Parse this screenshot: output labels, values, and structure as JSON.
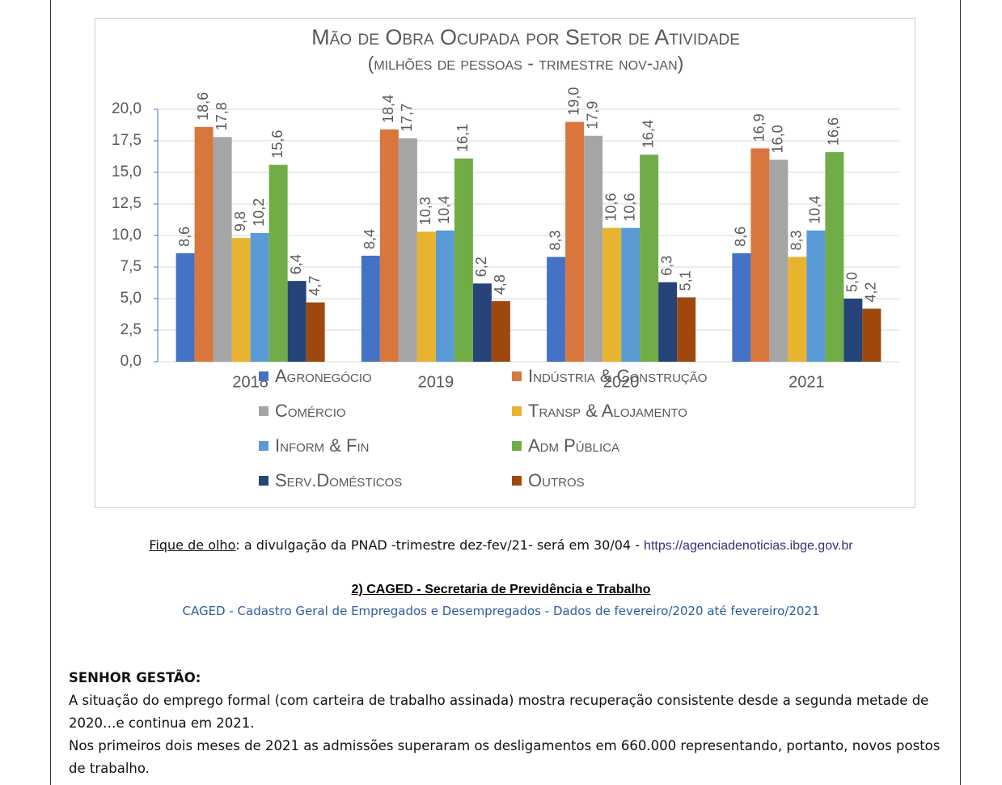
{
  "chart_data": {
    "type": "bar",
    "title": "Mão de Obra Ocupada por Setor de Atividade",
    "subtitle": "(milhões de pessoas - trimestre nov-jan)",
    "categories": [
      "2018",
      "2019",
      "2020",
      "2021"
    ],
    "series": [
      {
        "name": "Agronegócio",
        "color": "#4472c4",
        "values": [
          8.6,
          8.4,
          8.3,
          8.6
        ],
        "value_labels": [
          "8,6",
          "8,4",
          "8,3",
          "8,6"
        ]
      },
      {
        "name": "Indústria & Construção",
        "color": "#d9763d",
        "values": [
          18.6,
          18.4,
          19.0,
          16.9
        ],
        "value_labels": [
          "18,6",
          "18,4",
          "19,0",
          "16,9"
        ]
      },
      {
        "name": "Comércio",
        "color": "#a5a5a5",
        "values": [
          17.8,
          17.7,
          17.9,
          16.0
        ],
        "value_labels": [
          "17,8",
          "17,7",
          "17,9",
          "16,0"
        ]
      },
      {
        "name": "Transp & Alojamento",
        "color": "#e8b32e",
        "values": [
          9.8,
          10.3,
          10.6,
          8.3
        ],
        "value_labels": [
          "9,8",
          "10,3",
          "10,6",
          "8,3"
        ]
      },
      {
        "name": "Inform & Fin",
        "color": "#5b9bd5",
        "values": [
          10.2,
          10.4,
          10.6,
          10.4
        ],
        "value_labels": [
          "10,2",
          "10,4",
          "10,6",
          "10,4"
        ]
      },
      {
        "name": "Adm Pública",
        "color": "#70ad47",
        "values": [
          15.6,
          16.1,
          16.4,
          16.6
        ],
        "value_labels": [
          "15,6",
          "16,1",
          "16,4",
          "16,6"
        ]
      },
      {
        "name": "Serv.Domésticos",
        "color": "#264478",
        "values": [
          6.4,
          6.2,
          6.3,
          5.0
        ],
        "value_labels": [
          "6,4",
          "6,2",
          "6,3",
          "5,0"
        ]
      },
      {
        "name": "Outros",
        "color": "#9e480e",
        "values": [
          4.7,
          4.8,
          5.1,
          4.2
        ],
        "value_labels": [
          "4,7",
          "4,8",
          "5,1",
          "4,2"
        ]
      }
    ],
    "ylim": [
      0,
      20
    ],
    "yticks": [
      {
        "value": 0,
        "label": "0,0"
      },
      {
        "value": 2.5,
        "label": "2,5"
      },
      {
        "value": 5,
        "label": "5,0"
      },
      {
        "value": 7.5,
        "label": "7,5"
      },
      {
        "value": 10,
        "label": "10,0"
      },
      {
        "value": 12.5,
        "label": "12,5"
      },
      {
        "value": 15,
        "label": "15,0"
      },
      {
        "value": 17.5,
        "label": "17,5"
      },
      {
        "value": 20,
        "label": "20,0"
      }
    ],
    "grid": true,
    "legend": "bottom"
  },
  "note": {
    "label": "Fique de olho",
    "text": ": a divulgação da PNAD -trimestre dez-fev/21- será em 30/04 - ",
    "link": "https://agenciadenoticias.ibge.gov.br"
  },
  "section": {
    "heading": "2) CAGED - Secretaria de Previdência e Trabalho",
    "subheading": "CAGED - Cadastro Geral de Empregados e Desempregados - Dados de fevereiro/2020 até fevereiro/2021"
  },
  "body": {
    "lead": "SENHOR GESTÃO:",
    "paragraphs": [
      "A situação do emprego formal (com carteira de trabalho assinada) mostra recuperação consistente desde a segunda metade de 2020…e continua em 2021.",
      "Nos primeiros dois meses de 2021 as admissões superaram os desligamentos em 660.000 representando, portanto, novos postos de trabalho."
    ]
  }
}
